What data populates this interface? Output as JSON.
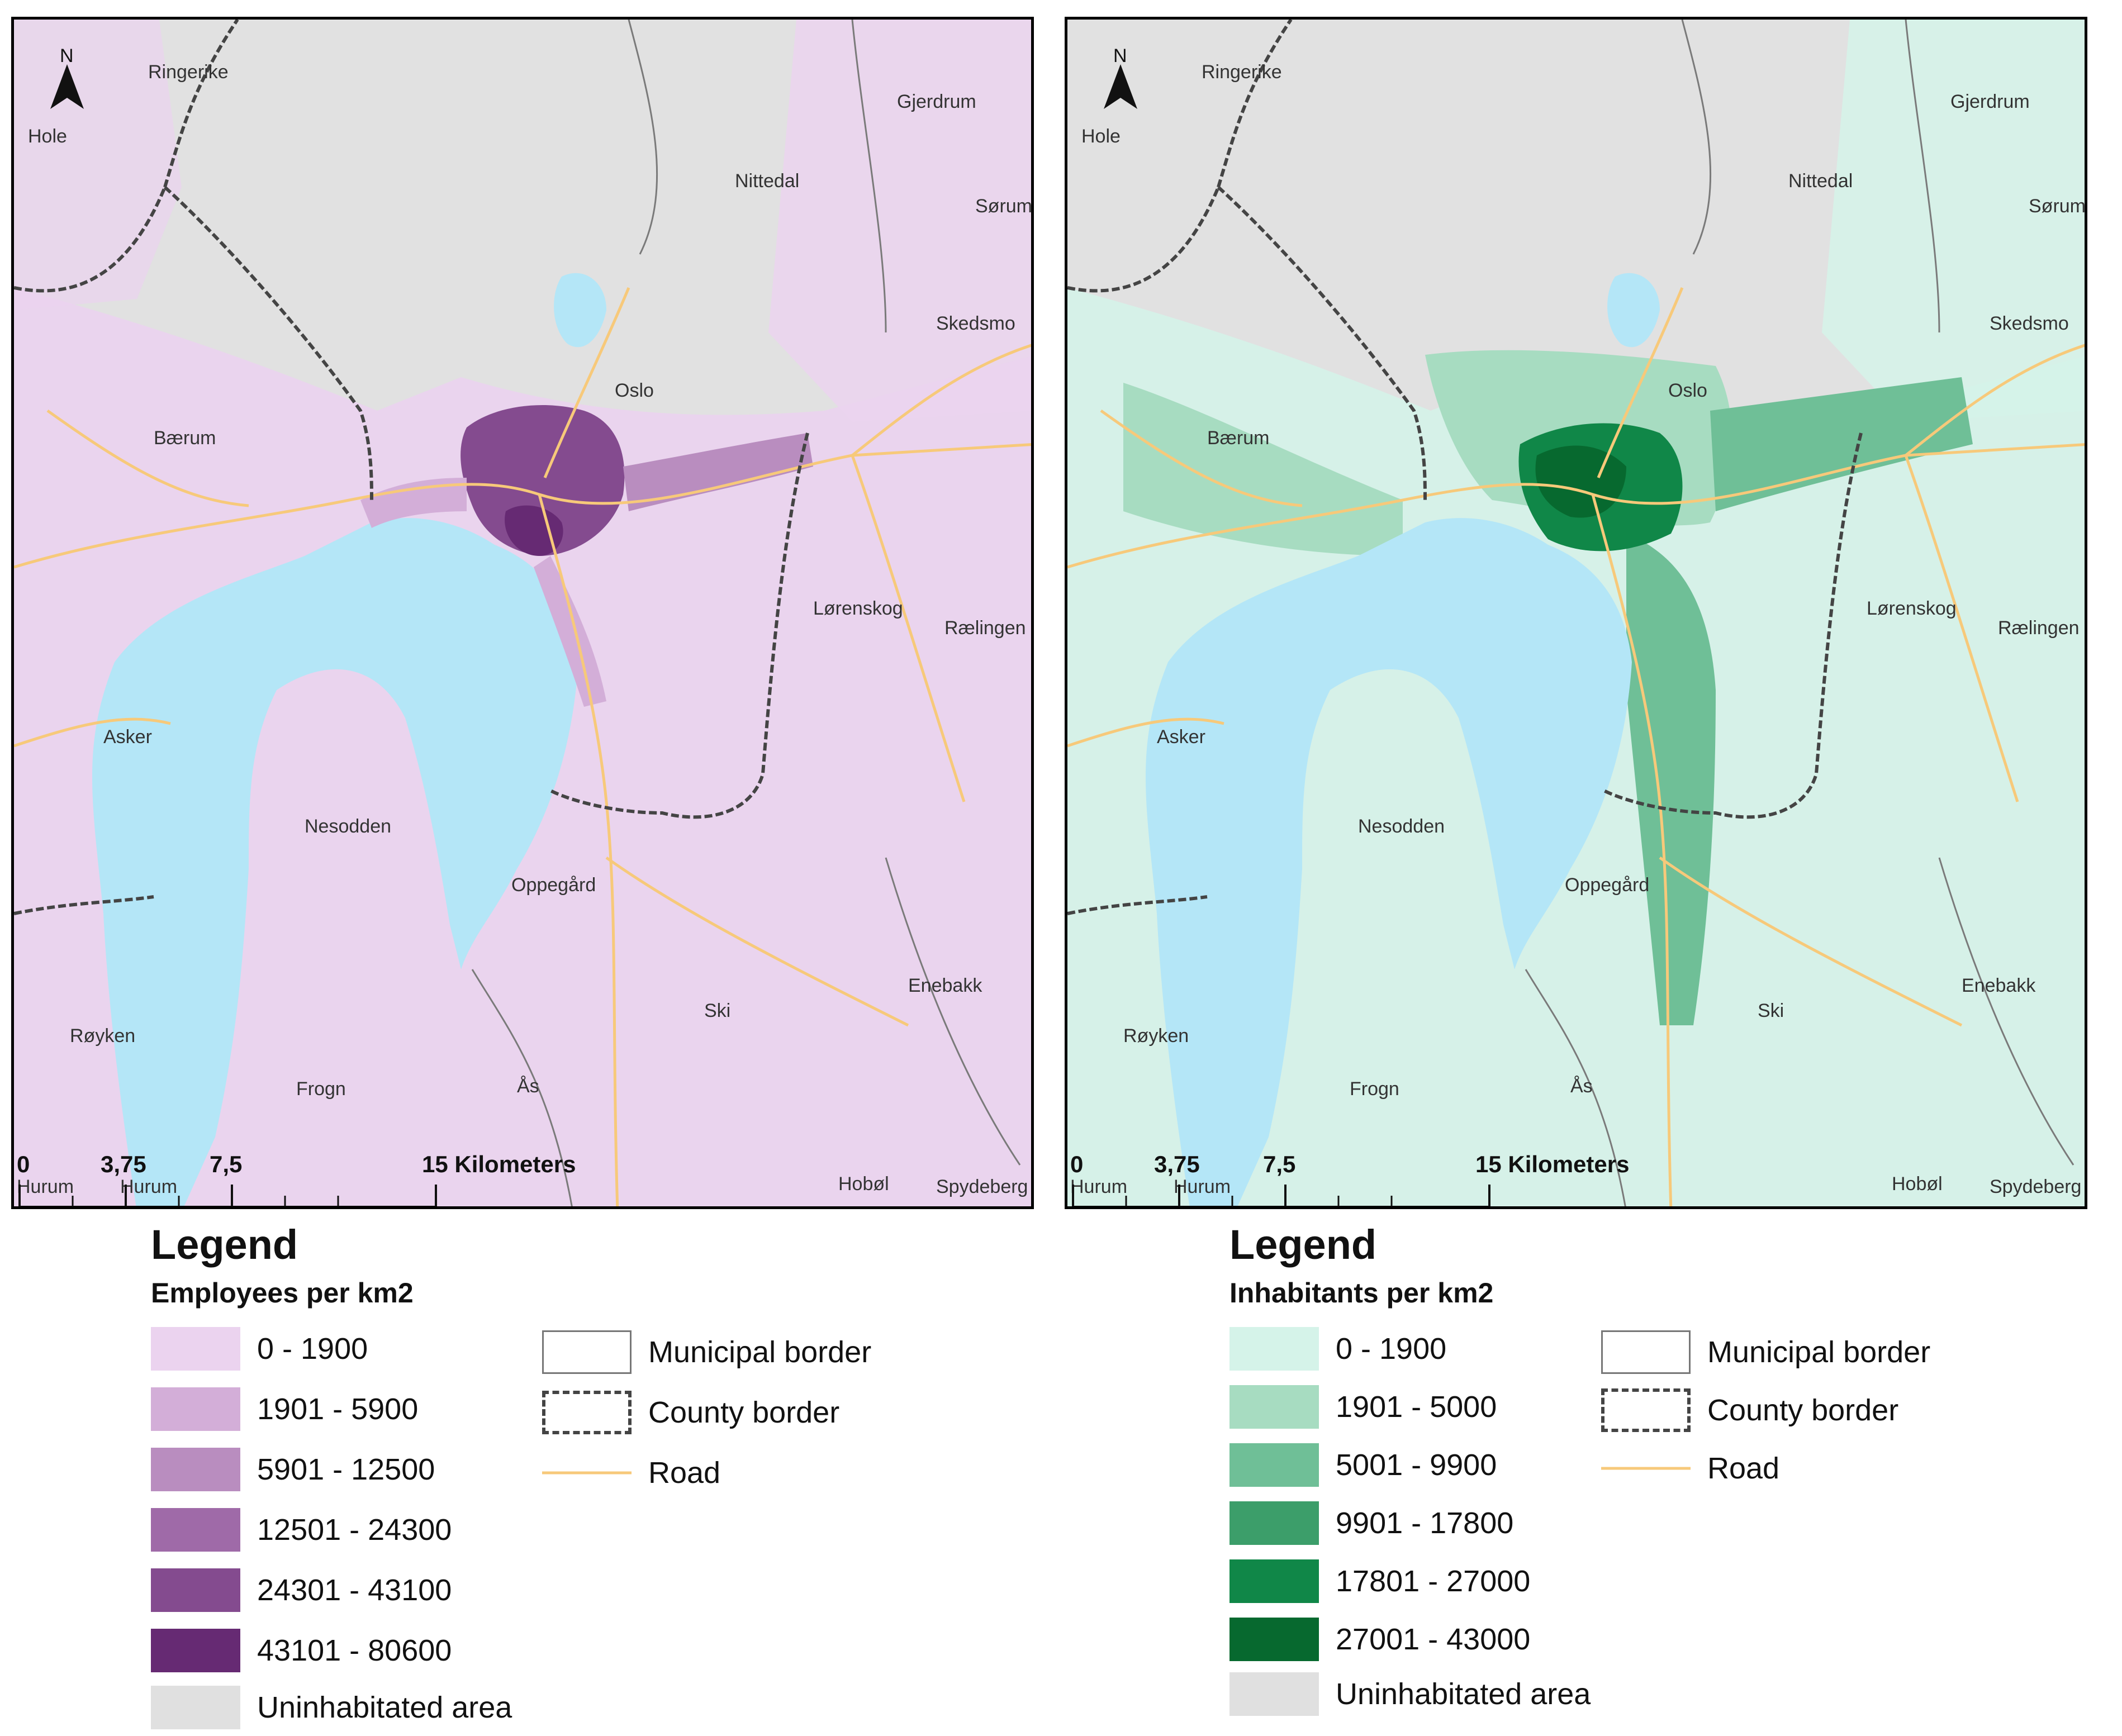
{
  "maps": [
    {
      "id": "employees",
      "compass_label": "N",
      "place_labels": [
        "Ringerike",
        "Hole",
        "Gjerdrum",
        "Nittedal",
        "Sørum",
        "Skedsmo",
        "Oslo",
        "Bærum",
        "Lørenskog",
        "Rælingen",
        "Asker",
        "Nesodden",
        "Oppegård",
        "Enebakk",
        "Ski",
        "Røyken",
        "Frogn",
        "Ås",
        "Hurum",
        "Hurum",
        "Hobøl",
        "Spydeberg"
      ],
      "scale_labels": [
        "0",
        "3,75",
        "7,5",
        "15 Kilometers"
      ],
      "colors": {
        "water": "#b4e6f7",
        "background": "#e1e1e1",
        "low": "#eacff0",
        "accent": "#6b2a78",
        "road": "#f7c97a"
      }
    },
    {
      "id": "inhabitants",
      "compass_label": "N",
      "place_labels": [
        "Ringerike",
        "Hole",
        "Gjerdrum",
        "Nittedal",
        "Sørum",
        "Skedsmo",
        "Oslo",
        "Bærum",
        "Lørenskog",
        "Rælingen",
        "Asker",
        "Nesodden",
        "Oppegård",
        "Enebakk",
        "Ski",
        "Røyken",
        "Frogn",
        "Ås",
        "Hurum",
        "Hurum",
        "Hobøl",
        "Spydeberg"
      ],
      "scale_labels": [
        "0",
        "3,75",
        "7,5",
        "15 Kilometers"
      ],
      "colors": {
        "water": "#b4e6f7",
        "background": "#e1e1e1",
        "low": "#d4f4ea",
        "accent": "#0a6e38",
        "road": "#f7c97a"
      }
    }
  ],
  "legends": [
    {
      "title": "Legend",
      "subtitle": "Employees per km2",
      "classes": [
        {
          "label": "0 - 1900",
          "color": "#ebd3ef"
        },
        {
          "label": "1901 - 5900",
          "color": "#d3aed8"
        },
        {
          "label": "5901 - 12500",
          "color": "#b98dbf"
        },
        {
          "label": "12501 - 24300",
          "color": "#9f6aa8"
        },
        {
          "label": "24301 - 43100",
          "color": "#844b8f"
        },
        {
          "label": "43101 - 80600",
          "color": "#662a73"
        },
        {
          "label": "Uninhabitated area",
          "color": "#e0e0e0"
        }
      ],
      "symbols": [
        {
          "label": "Municipal border",
          "kind": "municipal"
        },
        {
          "label": "County border",
          "kind": "county"
        },
        {
          "label": "Road",
          "kind": "road"
        }
      ]
    },
    {
      "title": "Legend",
      "subtitle": "Inhabitants per km2",
      "classes": [
        {
          "label": "0 - 1900",
          "color": "#d5f3e9"
        },
        {
          "label": "1901 - 5000",
          "color": "#a7dcc1"
        },
        {
          "label": "5001 - 9900",
          "color": "#6fbf97"
        },
        {
          "label": "9901 - 17800",
          "color": "#3c9e6a"
        },
        {
          "label": "17801 - 27000",
          "color": "#108748"
        },
        {
          "label": "27001 - 43000",
          "color": "#07692f"
        },
        {
          "label": "Uninhabitated area",
          "color": "#e0e0e0"
        }
      ],
      "symbols": [
        {
          "label": "Municipal border",
          "kind": "municipal"
        },
        {
          "label": "County border",
          "kind": "county"
        },
        {
          "label": "Road",
          "kind": "road"
        }
      ]
    }
  ]
}
